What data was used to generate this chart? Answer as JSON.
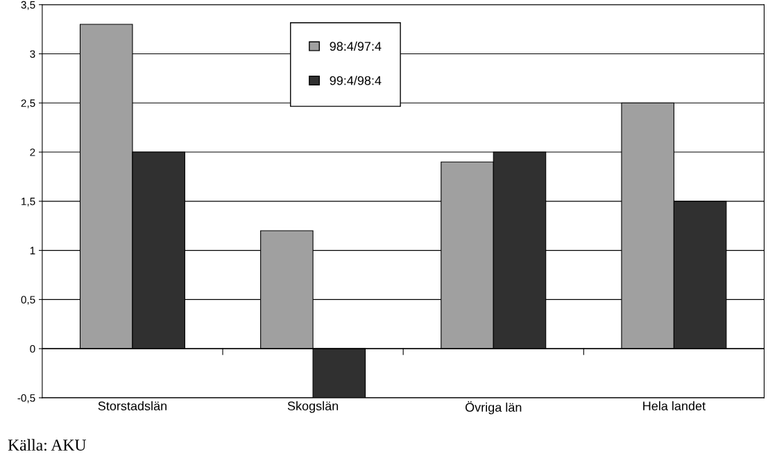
{
  "chart_data": {
    "type": "bar",
    "categories": [
      "Storstadslän",
      "Skogslän",
      "Övriga län",
      "Hela landet"
    ],
    "series": [
      {
        "name": "98:4/97:4",
        "color": "#a0a0a0",
        "values": [
          3.3,
          1.2,
          1.9,
          2.5
        ]
      },
      {
        "name": "99:4/98:4",
        "color": "#303030",
        "values": [
          2.0,
          -0.5,
          2.0,
          1.5
        ]
      }
    ],
    "ylim": [
      -0.5,
      3.5
    ],
    "yticks": [
      {
        "value": -0.5,
        "label": "-0,5"
      },
      0,
      {
        "value": 0.5,
        "label": "0,5"
      },
      1,
      {
        "value": 1.5,
        "label": "1,5"
      },
      2,
      {
        "value": 2.5,
        "label": "2,5"
      },
      3,
      {
        "value": 3.5,
        "label": "3,5"
      }
    ],
    "grid": "y",
    "legend": "top",
    "annotations": [
      "Källa: AKU"
    ]
  }
}
